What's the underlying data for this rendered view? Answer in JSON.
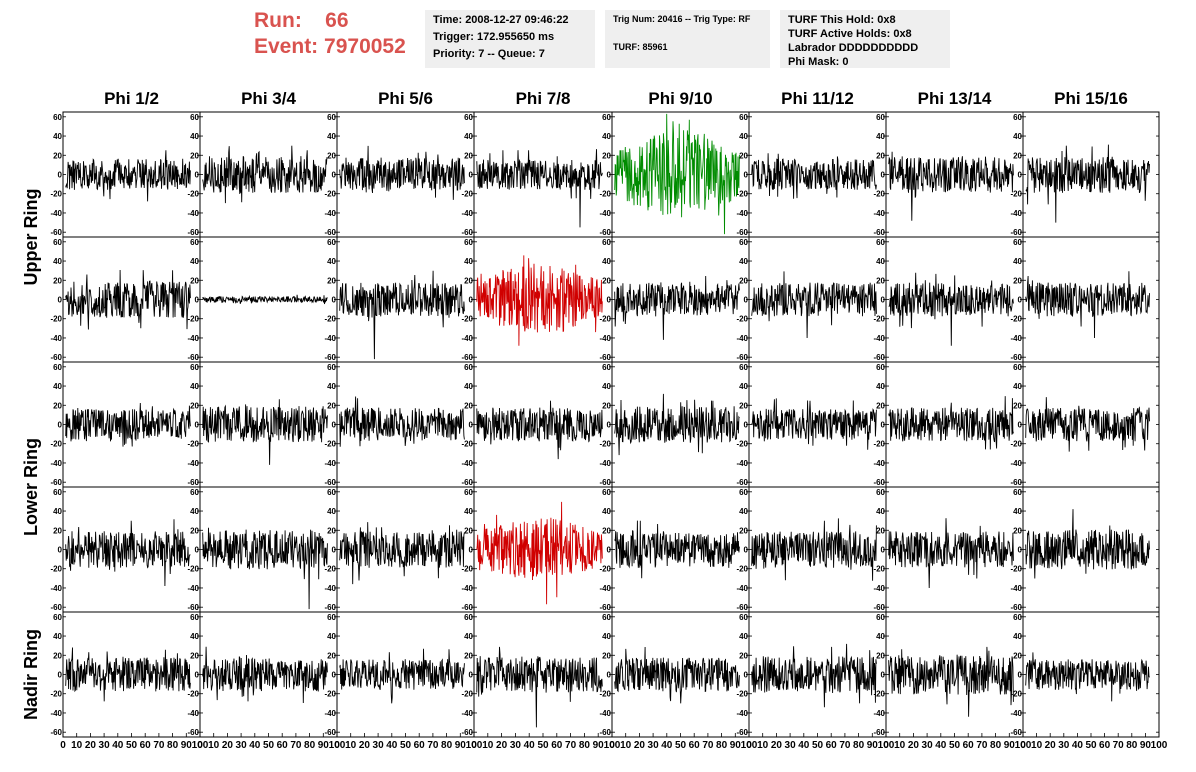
{
  "header": {
    "run_label": "Run:",
    "run_value": "66",
    "event_label": "Event:",
    "event_value": "7970052"
  },
  "time_box": {
    "time": "Time: 2008-12-27 09:46:22",
    "trigger": "Trigger: 172.955650 ms",
    "priority": "Priority: 7 -- Queue: 7"
  },
  "trig_box": {
    "trig": "Trig Num: 20416 -- Trig Type: RF",
    "turf": "TURF: 85961"
  },
  "turf_box": {
    "this_hold": "TURF This Hold: 0x8",
    "active_holds": "TURF Active Holds: 0x8",
    "labrador": "Labrador DDDDDDDDDD",
    "phi_mask": "Phi Mask: 0"
  },
  "columns": [
    "Phi 1/2",
    "Phi 3/4",
    "Phi 5/6",
    "Phi 7/8",
    "Phi 9/10",
    "Phi 11/12",
    "Phi 13/14",
    "Phi 15/16"
  ],
  "ring_labels": [
    "Upper Ring",
    "Lower Ring",
    "Nadir Ring"
  ],
  "colors": {
    "normal": "#000000",
    "triggered_green": "#008c00",
    "triggered_red": "#d00000",
    "header_red": "#d9534f"
  },
  "chart_data": {
    "type": "line",
    "description_units": "waveform amplitude vs sample index",
    "xlim": [
      0,
      100
    ],
    "ylim": [
      -65,
      65
    ],
    "y_ticks": [
      -60,
      -40,
      -20,
      0,
      20,
      40,
      60
    ],
    "x_tick_labels": [
      "0",
      "10",
      "20",
      "30",
      "40",
      "50",
      "60",
      "70",
      "80",
      "90",
      "100"
    ],
    "sample_range": [
      2,
      93
    ],
    "rows": 5,
    "cols": 8,
    "panels": [
      [
        {
          "amp": 10,
          "spike": -28,
          "color": "normal"
        },
        {
          "amp": 12,
          "spike": 30,
          "color": "normal"
        },
        {
          "amp": 11,
          "spike": -24,
          "color": "normal"
        },
        {
          "amp": 10,
          "spike": -55,
          "color": "normal"
        },
        {
          "amp": 22,
          "spike": -62,
          "color": "triggered_green"
        },
        {
          "amp": 10,
          "spike": 22,
          "color": "normal"
        },
        {
          "amp": 12,
          "spike": -48,
          "color": "normal"
        },
        {
          "amp": 12,
          "spike": -50,
          "color": "normal"
        }
      ],
      [
        {
          "amp": 12,
          "spike": 26,
          "color": "normal"
        },
        {
          "amp": 2,
          "spike": 2,
          "color": "normal"
        },
        {
          "amp": 11,
          "spike": -62,
          "color": "normal"
        },
        {
          "amp": 18,
          "spike": -48,
          "color": "triggered_red"
        },
        {
          "amp": 11,
          "spike": -42,
          "color": "normal"
        },
        {
          "amp": 11,
          "spike": -40,
          "color": "normal"
        },
        {
          "amp": 11,
          "spike": -48,
          "color": "normal"
        },
        {
          "amp": 11,
          "spike": -40,
          "color": "normal"
        }
      ],
      [
        {
          "amp": 10,
          "spike": -20,
          "color": "normal"
        },
        {
          "amp": 12,
          "spike": -42,
          "color": "normal"
        },
        {
          "amp": 11,
          "spike": -20,
          "color": "normal"
        },
        {
          "amp": 11,
          "spike": -36,
          "color": "normal"
        },
        {
          "amp": 12,
          "spike": -30,
          "color": "normal"
        },
        {
          "amp": 10,
          "spike": -22,
          "color": "normal"
        },
        {
          "amp": 11,
          "spike": -26,
          "color": "normal"
        },
        {
          "amp": 11,
          "spike": -22,
          "color": "normal"
        }
      ],
      [
        {
          "amp": 12,
          "spike": -38,
          "color": "normal"
        },
        {
          "amp": 13,
          "spike": -62,
          "color": "normal"
        },
        {
          "amp": 12,
          "spike": -36,
          "color": "normal"
        },
        {
          "amp": 16,
          "spike": 36,
          "color": "triggered_red"
        },
        {
          "amp": 12,
          "spike": -30,
          "color": "normal"
        },
        {
          "amp": 12,
          "spike": -32,
          "color": "normal"
        },
        {
          "amp": 12,
          "spike": -40,
          "color": "normal"
        },
        {
          "amp": 13,
          "spike": 42,
          "color": "normal"
        }
      ],
      [
        {
          "amp": 11,
          "spike": -28,
          "color": "normal"
        },
        {
          "amp": 11,
          "spike": -28,
          "color": "normal"
        },
        {
          "amp": 10,
          "spike": -30,
          "color": "normal"
        },
        {
          "amp": 12,
          "spike": -55,
          "color": "normal"
        },
        {
          "amp": 11,
          "spike": -30,
          "color": "normal"
        },
        {
          "amp": 12,
          "spike": -34,
          "color": "normal"
        },
        {
          "amp": 13,
          "spike": -44,
          "color": "normal"
        },
        {
          "amp": 10,
          "spike": -28,
          "color": "normal"
        }
      ]
    ]
  }
}
